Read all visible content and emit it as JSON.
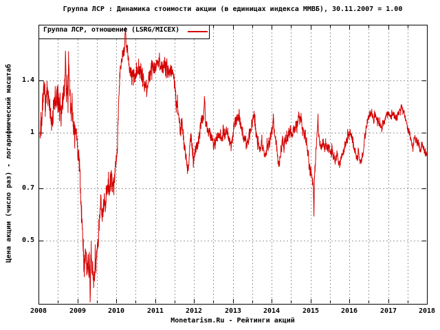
{
  "title": "Группа ЛСР : Динамика стоимости акции (в единицах индекса ММВБ), 30.11.2007 = 1.00",
  "legend": {
    "label": "Группа ЛСР, отношение (LSRG/MICEX)"
  },
  "caption": "Monetarism.Ru - Рейтинги акций",
  "y_axis": {
    "label": "Цена акции (число раз) - логарифмический масштаб",
    "tick_labels": [
      "1.4",
      "1",
      "0.7",
      "0.5"
    ]
  },
  "x_axis": {
    "tick_labels": [
      "2008",
      "2009",
      "2010",
      "2011",
      "2012",
      "2013",
      "2014",
      "2015",
      "2016",
      "2017",
      "2018"
    ]
  },
  "colors": {
    "series": "#d40000",
    "grid": "#999999",
    "axis": "#000000",
    "background": "#ffffff"
  },
  "chart_data": {
    "type": "line",
    "series_name": "LSRG/MICEX",
    "x_range": [
      2008,
      2018
    ],
    "y_scale": "log",
    "y_ticks": [
      1.4,
      1,
      0.7,
      0.5
    ],
    "x_ticks": [
      2008,
      2009,
      2010,
      2011,
      2012,
      2013,
      2014,
      2015,
      2016,
      2017,
      2018
    ],
    "key_points": [
      [
        2008.7,
        1.61
      ],
      [
        2009.33,
        0.337
      ],
      [
        2010.237,
        1.97
      ],
      [
        2012.275,
        1.24
      ],
      [
        2015.09,
        0.585
      ]
    ],
    "anchors": [
      [
        2008.04,
        0.99
      ],
      [
        2008.07,
        1.07
      ],
      [
        2008.1,
        1.15
      ],
      [
        2008.13,
        1.24
      ],
      [
        2008.16,
        1.33
      ],
      [
        2008.19,
        1.24
      ],
      [
        2008.22,
        1.28
      ],
      [
        2008.26,
        1.21
      ],
      [
        2008.3,
        1.16
      ],
      [
        2008.34,
        1.08
      ],
      [
        2008.38,
        1.17
      ],
      [
        2008.42,
        1.22
      ],
      [
        2008.46,
        1.26
      ],
      [
        2008.5,
        1.18
      ],
      [
        2008.54,
        1.23
      ],
      [
        2008.58,
        1.12
      ],
      [
        2008.62,
        1.2
      ],
      [
        2008.66,
        1.28
      ],
      [
        2008.685,
        1.45
      ],
      [
        2008.7,
        1.6
      ],
      [
        2008.72,
        1.24
      ],
      [
        2008.74,
        1.38
      ],
      [
        2008.76,
        1.18
      ],
      [
        2008.78,
        1.5
      ],
      [
        2008.8,
        1.36
      ],
      [
        2008.83,
        1.22
      ],
      [
        2008.86,
        1.12
      ],
      [
        2008.9,
        1.05
      ],
      [
        2008.94,
        1.0
      ],
      [
        2008.98,
        0.96
      ],
      [
        2009.02,
        0.88
      ],
      [
        2009.06,
        0.78
      ],
      [
        2009.1,
        0.62
      ],
      [
        2009.14,
        0.5
      ],
      [
        2009.18,
        0.43
      ],
      [
        2009.21,
        0.47
      ],
      [
        2009.24,
        0.42
      ],
      [
        2009.27,
        0.45
      ],
      [
        2009.3,
        0.42
      ],
      [
        2009.315,
        0.45
      ],
      [
        2009.33,
        0.335
      ],
      [
        2009.345,
        0.46
      ],
      [
        2009.39,
        0.43
      ],
      [
        2009.42,
        0.38
      ],
      [
        2009.45,
        0.41
      ],
      [
        2009.48,
        0.44
      ],
      [
        2009.52,
        0.49
      ],
      [
        2009.56,
        0.55
      ],
      [
        2009.6,
        0.63
      ],
      [
        2009.64,
        0.58
      ],
      [
        2009.68,
        0.65
      ],
      [
        2009.72,
        0.62
      ],
      [
        2009.76,
        0.69
      ],
      [
        2009.8,
        0.73
      ],
      [
        2009.84,
        0.7
      ],
      [
        2009.88,
        0.74
      ],
      [
        2009.92,
        0.72
      ],
      [
        2009.96,
        0.78
      ],
      [
        2010.0,
        0.86
      ],
      [
        2010.03,
        0.93
      ],
      [
        2010.06,
        1.22
      ],
      [
        2010.09,
        1.42
      ],
      [
        2010.12,
        1.52
      ],
      [
        2010.14,
        1.58
      ],
      [
        2010.17,
        1.66
      ],
      [
        2010.19,
        1.74
      ],
      [
        2010.21,
        1.66
      ],
      [
        2010.225,
        1.8
      ],
      [
        2010.24,
        1.96
      ],
      [
        2010.26,
        1.7
      ],
      [
        2010.29,
        1.77
      ],
      [
        2010.315,
        1.58
      ],
      [
        2010.34,
        1.53
      ],
      [
        2010.37,
        1.48
      ],
      [
        2010.41,
        1.42
      ],
      [
        2010.45,
        1.46
      ],
      [
        2010.49,
        1.42
      ],
      [
        2010.53,
        1.48
      ],
      [
        2010.57,
        1.52
      ],
      [
        2010.61,
        1.46
      ],
      [
        2010.65,
        1.49
      ],
      [
        2010.7,
        1.4
      ],
      [
        2010.74,
        1.34
      ],
      [
        2010.78,
        1.32
      ],
      [
        2010.82,
        1.36
      ],
      [
        2010.86,
        1.42
      ],
      [
        2010.9,
        1.48
      ],
      [
        2010.94,
        1.54
      ],
      [
        2010.98,
        1.49
      ],
      [
        2011.02,
        1.53
      ],
      [
        2011.06,
        1.56
      ],
      [
        2011.1,
        1.59
      ],
      [
        2011.14,
        1.55
      ],
      [
        2011.18,
        1.51
      ],
      [
        2011.22,
        1.55
      ],
      [
        2011.26,
        1.49
      ],
      [
        2011.3,
        1.52
      ],
      [
        2011.34,
        1.47
      ],
      [
        2011.38,
        1.5
      ],
      [
        2011.42,
        1.45
      ],
      [
        2011.46,
        1.47
      ],
      [
        2011.5,
        1.4
      ],
      [
        2011.53,
        1.28
      ],
      [
        2011.56,
        1.18
      ],
      [
        2011.6,
        1.14
      ],
      [
        2011.63,
        1.08
      ],
      [
        2011.66,
        1.02
      ],
      [
        2011.7,
        1.04
      ],
      [
        2011.73,
        0.97
      ],
      [
        2011.76,
        0.92
      ],
      [
        2011.8,
        0.86
      ],
      [
        2011.83,
        0.8
      ],
      [
        2011.86,
        0.78
      ],
      [
        2011.885,
        0.88
      ],
      [
        2011.91,
        0.97
      ],
      [
        2011.93,
        1.0
      ],
      [
        2011.96,
        0.9
      ],
      [
        2011.99,
        0.83
      ],
      [
        2012.03,
        0.87
      ],
      [
        2012.07,
        0.92
      ],
      [
        2012.11,
        0.96
      ],
      [
        2012.15,
        1.01
      ],
      [
        2012.19,
        1.08
      ],
      [
        2012.22,
        1.09
      ],
      [
        2012.25,
        1.1
      ],
      [
        2012.275,
        1.235
      ],
      [
        2012.3,
        1.08
      ],
      [
        2012.33,
        1.07
      ],
      [
        2012.36,
        1.03
      ],
      [
        2012.4,
        1.0
      ],
      [
        2012.44,
        0.97
      ],
      [
        2012.48,
        0.95
      ],
      [
        2012.52,
        0.93
      ],
      [
        2012.56,
        0.95
      ],
      [
        2012.6,
        0.98
      ],
      [
        2012.64,
        0.95
      ],
      [
        2012.68,
        0.99
      ],
      [
        2012.72,
        0.96
      ],
      [
        2012.76,
        1.01
      ],
      [
        2012.8,
        0.98
      ],
      [
        2012.84,
        1.03
      ],
      [
        2012.88,
        0.99
      ],
      [
        2012.92,
        0.95
      ],
      [
        2012.96,
        0.93
      ],
      [
        2013.0,
        0.97
      ],
      [
        2013.04,
        1.04
      ],
      [
        2013.08,
        1.08
      ],
      [
        2013.12,
        1.1
      ],
      [
        2013.16,
        1.09
      ],
      [
        2013.2,
        1.06
      ],
      [
        2013.24,
        1.02
      ],
      [
        2013.28,
        0.98
      ],
      [
        2013.32,
        0.95
      ],
      [
        2013.36,
        0.93
      ],
      [
        2013.4,
        0.95
      ],
      [
        2013.44,
        1.0
      ],
      [
        2013.48,
        1.04
      ],
      [
        2013.52,
        1.09
      ],
      [
        2013.55,
        1.14
      ],
      [
        2013.58,
        1.05
      ],
      [
        2013.62,
        0.97
      ],
      [
        2013.66,
        0.92
      ],
      [
        2013.7,
        0.9
      ],
      [
        2013.74,
        0.92
      ],
      [
        2013.78,
        0.9
      ],
      [
        2013.82,
        0.87
      ],
      [
        2013.86,
        0.88
      ],
      [
        2013.9,
        0.91
      ],
      [
        2013.94,
        0.94
      ],
      [
        2013.98,
        0.97
      ],
      [
        2014.02,
        1.03
      ],
      [
        2014.05,
        1.11
      ],
      [
        2014.08,
        0.98
      ],
      [
        2014.12,
        0.92
      ],
      [
        2014.16,
        0.86
      ],
      [
        2014.2,
        0.82
      ],
      [
        2014.24,
        0.89
      ],
      [
        2014.28,
        0.95
      ],
      [
        2014.32,
        0.93
      ],
      [
        2014.36,
        0.96
      ],
      [
        2014.4,
        0.98
      ],
      [
        2014.44,
        0.99
      ],
      [
        2014.48,
        1.01
      ],
      [
        2014.52,
        1.02
      ],
      [
        2014.56,
        1.0
      ],
      [
        2014.6,
        1.03
      ],
      [
        2014.64,
        1.05
      ],
      [
        2014.68,
        1.08
      ],
      [
        2014.7,
        1.15
      ],
      [
        2014.72,
        1.07
      ],
      [
        2014.75,
        1.1
      ],
      [
        2014.79,
        1.03
      ],
      [
        2014.83,
        1.0
      ],
      [
        2014.87,
        0.97
      ],
      [
        2014.91,
        0.94
      ],
      [
        2014.95,
        0.86
      ],
      [
        2014.99,
        0.79
      ],
      [
        2015.03,
        0.76
      ],
      [
        2015.06,
        0.72
      ],
      [
        2015.075,
        0.74
      ],
      [
        2015.09,
        0.58
      ],
      [
        2015.105,
        0.75
      ],
      [
        2015.13,
        0.83
      ],
      [
        2015.14,
        0.88
      ],
      [
        2015.17,
        0.97
      ],
      [
        2015.195,
        1.1
      ],
      [
        2015.22,
        0.95
      ],
      [
        2015.25,
        0.93
      ],
      [
        2015.28,
        0.91
      ],
      [
        2015.32,
        0.94
      ],
      [
        2015.36,
        0.9
      ],
      [
        2015.4,
        0.93
      ],
      [
        2015.44,
        0.9
      ],
      [
        2015.48,
        0.92
      ],
      [
        2015.52,
        0.89
      ],
      [
        2015.56,
        0.87
      ],
      [
        2015.6,
        0.86
      ],
      [
        2015.64,
        0.84
      ],
      [
        2015.68,
        0.86
      ],
      [
        2015.72,
        0.83
      ],
      [
        2015.76,
        0.82
      ],
      [
        2015.8,
        0.86
      ],
      [
        2015.84,
        0.88
      ],
      [
        2015.88,
        0.91
      ],
      [
        2015.92,
        0.94
      ],
      [
        2015.96,
        0.97
      ],
      [
        2016.0,
        0.99
      ],
      [
        2016.04,
        1.0
      ],
      [
        2016.08,
        0.96
      ],
      [
        2016.12,
        0.91
      ],
      [
        2016.16,
        0.88
      ],
      [
        2016.2,
        0.85
      ],
      [
        2016.24,
        0.87
      ],
      [
        2016.28,
        0.83
      ],
      [
        2016.32,
        0.84
      ],
      [
        2016.36,
        0.88
      ],
      [
        2016.4,
        0.97
      ],
      [
        2016.44,
        1.05
      ],
      [
        2016.48,
        1.09
      ],
      [
        2016.52,
        1.11
      ],
      [
        2016.56,
        1.14
      ],
      [
        2016.6,
        1.1
      ],
      [
        2016.64,
        1.08
      ],
      [
        2016.68,
        1.11
      ],
      [
        2016.72,
        1.09
      ],
      [
        2016.76,
        1.07
      ],
      [
        2016.8,
        1.05
      ],
      [
        2016.84,
        1.03
      ],
      [
        2016.88,
        1.07
      ],
      [
        2016.92,
        1.09
      ],
      [
        2016.96,
        1.11
      ],
      [
        2017.0,
        1.14
      ],
      [
        2017.04,
        1.12
      ],
      [
        2017.08,
        1.1
      ],
      [
        2017.12,
        1.13
      ],
      [
        2017.16,
        1.11
      ],
      [
        2017.2,
        1.09
      ],
      [
        2017.24,
        1.12
      ],
      [
        2017.28,
        1.14
      ],
      [
        2017.32,
        1.16
      ],
      [
        2017.36,
        1.17
      ],
      [
        2017.4,
        1.15
      ],
      [
        2017.44,
        1.11
      ],
      [
        2017.48,
        1.05
      ],
      [
        2017.52,
        1.02
      ],
      [
        2017.56,
        0.99
      ],
      [
        2017.6,
        0.95
      ],
      [
        2017.64,
        0.9
      ],
      [
        2017.68,
        0.96
      ],
      [
        2017.72,
        0.95
      ],
      [
        2017.76,
        0.94
      ],
      [
        2017.8,
        0.92
      ],
      [
        2017.84,
        0.9
      ],
      [
        2017.88,
        0.93
      ],
      [
        2017.92,
        0.91
      ],
      [
        2017.96,
        0.87
      ],
      [
        2018.0,
        0.88
      ]
    ],
    "volatility": [
      [
        2008.0,
        0.055
      ],
      [
        2008.7,
        0.065
      ],
      [
        2009.05,
        0.065
      ],
      [
        2009.2,
        0.06
      ],
      [
        2009.5,
        0.055
      ],
      [
        2009.8,
        0.05
      ],
      [
        2010.05,
        0.035
      ],
      [
        2010.15,
        0.03
      ],
      [
        2010.35,
        0.038
      ],
      [
        2010.5,
        0.045
      ],
      [
        2011.4,
        0.036
      ],
      [
        2011.7,
        0.035
      ],
      [
        2011.9,
        0.032
      ],
      [
        2012.3,
        0.03
      ],
      [
        2013.0,
        0.028
      ],
      [
        2014.1,
        0.032
      ],
      [
        2014.7,
        0.026
      ],
      [
        2015.0,
        0.035
      ],
      [
        2015.25,
        0.026
      ],
      [
        2015.8,
        0.023
      ],
      [
        2016.3,
        0.022
      ],
      [
        2016.6,
        0.02
      ],
      [
        2017.5,
        0.018
      ],
      [
        2018.0,
        0.021
      ]
    ],
    "noise_seed": 7,
    "samples_per_year": 300
  }
}
